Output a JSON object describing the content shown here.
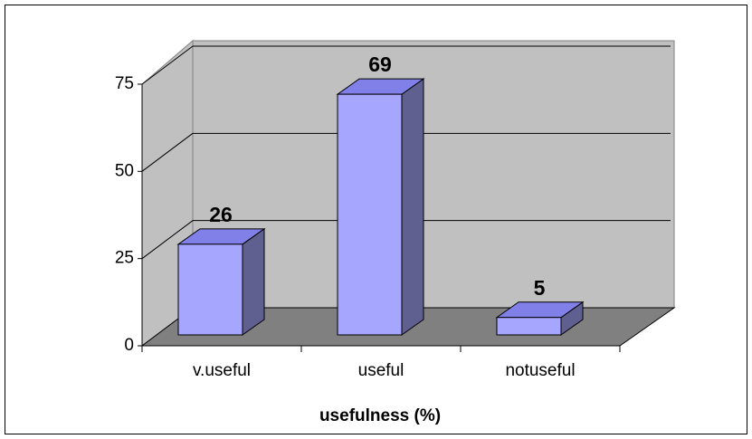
{
  "chart_data": {
    "type": "bar3d",
    "x_label": "usefulness (%)",
    "categories": [
      "v.useful",
      "useful",
      "notuseful"
    ],
    "values": [
      26,
      69,
      5
    ],
    "color": "#a6a6ff",
    "ylim": [
      0,
      75
    ],
    "yticks": [
      0,
      25,
      50,
      75
    ],
    "grid": true
  }
}
